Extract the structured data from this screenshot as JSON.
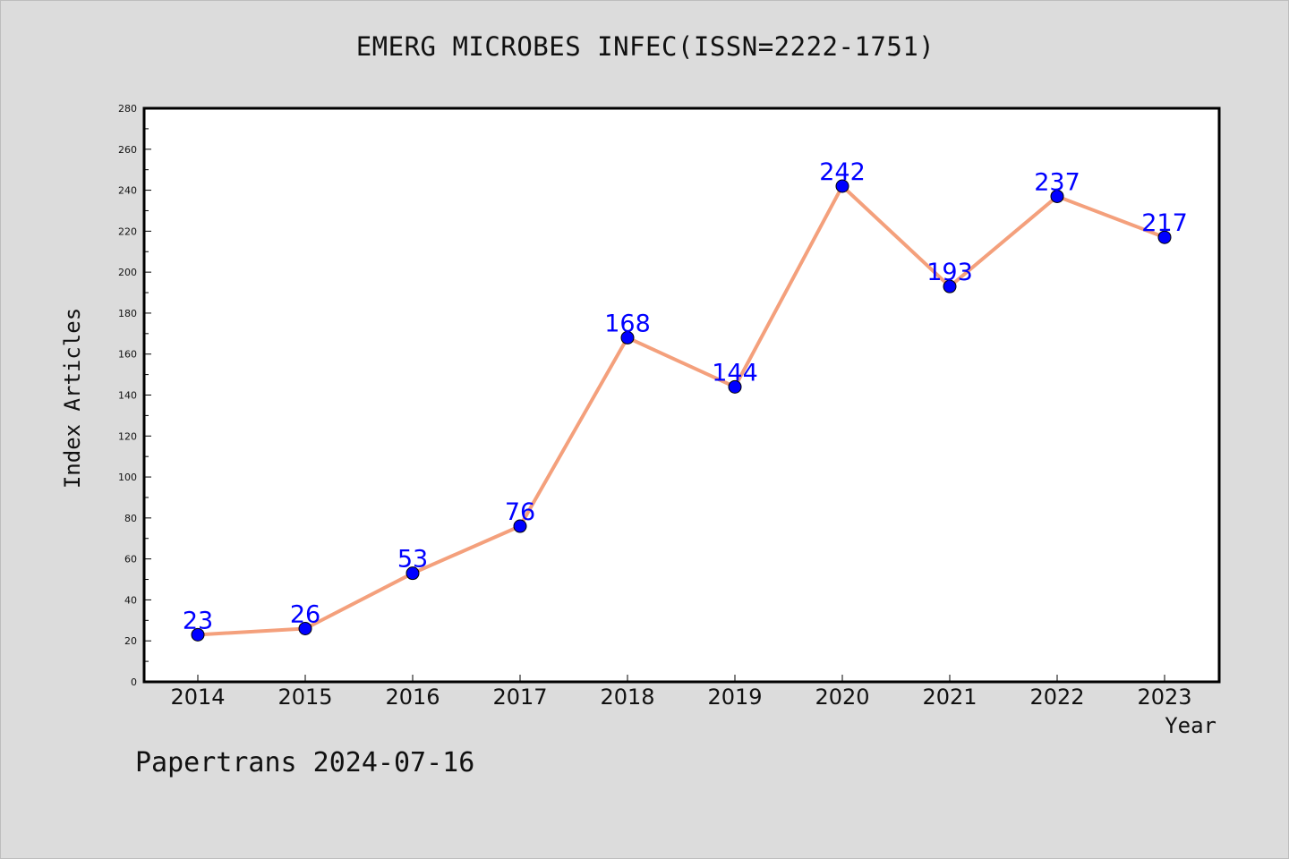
{
  "chart_data": {
    "type": "line",
    "title": "EMERG MICROBES INFEC(ISSN=2222-1751)",
    "xlabel": "Year",
    "ylabel": "Index Articles",
    "categories": [
      "2014",
      "2015",
      "2016",
      "2017",
      "2018",
      "2019",
      "2020",
      "2021",
      "2022",
      "2023"
    ],
    "values": [
      23,
      26,
      53,
      76,
      168,
      144,
      242,
      193,
      237,
      217
    ],
    "ylim": [
      0,
      280
    ],
    "yticks": [
      0,
      20,
      40,
      60,
      80,
      100,
      120,
      140,
      160,
      180,
      200,
      220,
      240,
      260,
      280
    ],
    "grid": false,
    "line_color": "#f4a07c",
    "marker_color": "#0000ff",
    "label_color": "#0000ff"
  },
  "footer": "Papertrans 2024-07-16"
}
